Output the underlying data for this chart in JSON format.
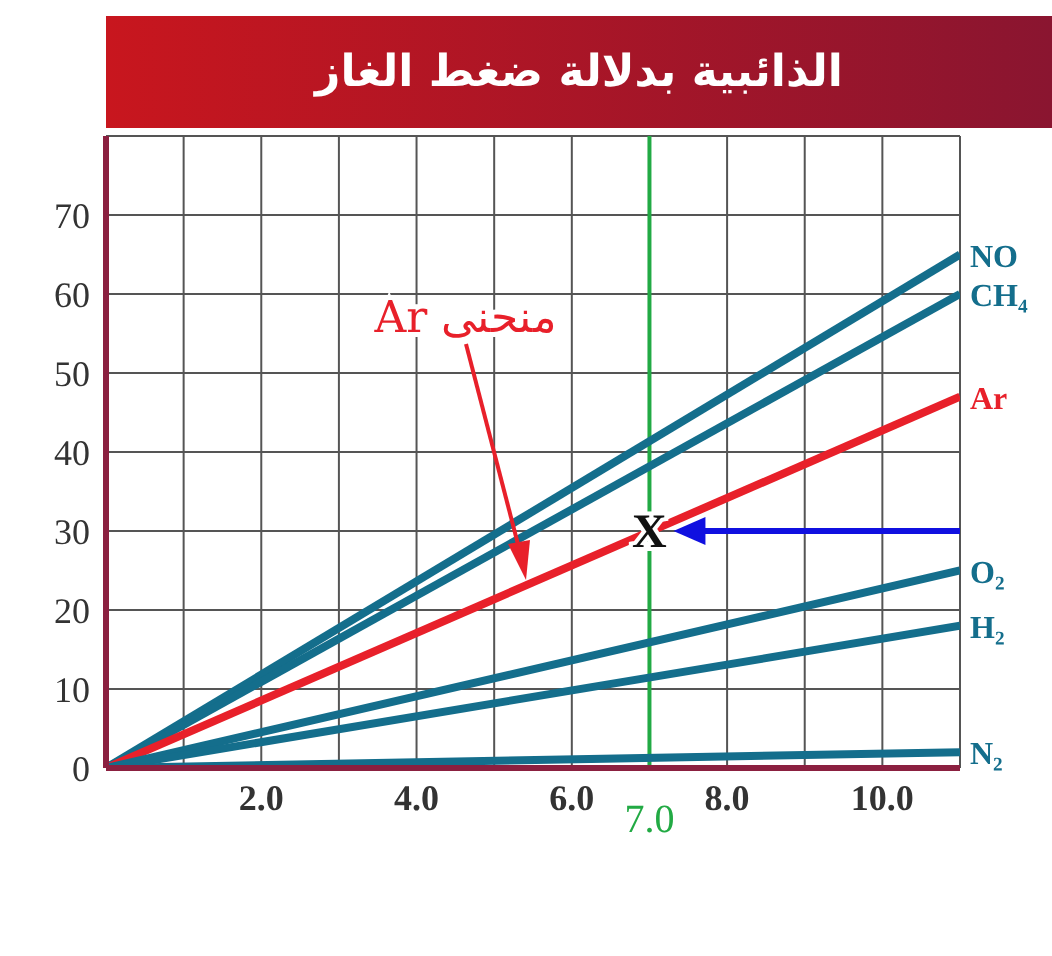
{
  "chart_data": {
    "type": "line",
    "title": "الذائبية بدلالة ضغط الغاز",
    "x": [
      0,
      11
    ],
    "series": [
      {
        "name": "NO",
        "color": "#146e8c",
        "values": [
          0,
          65
        ]
      },
      {
        "name": "CH₄",
        "color": "#146e8c",
        "values": [
          0,
          60
        ]
      },
      {
        "name": "Ar",
        "color": "#e8202a",
        "values": [
          0,
          47
        ]
      },
      {
        "name": "O₂",
        "color": "#146e8c",
        "values": [
          0,
          25
        ]
      },
      {
        "name": "H₂",
        "color": "#146e8c",
        "values": [
          0,
          18
        ]
      },
      {
        "name": "N₂",
        "color": "#146e8c",
        "values": [
          0,
          2
        ]
      }
    ],
    "xlim": [
      0,
      11
    ],
    "xticks": [
      {
        "value": 1,
        "label": null
      },
      {
        "value": 2,
        "label": "2.0"
      },
      {
        "value": 3,
        "label": null
      },
      {
        "value": 4,
        "label": "4.0"
      },
      {
        "value": 5,
        "label": null
      },
      {
        "value": 6,
        "label": "6.0"
      },
      {
        "value": 7,
        "label": null
      },
      {
        "value": 8,
        "label": "8.0"
      },
      {
        "value": 9,
        "label": null
      },
      {
        "value": 10,
        "label": "10.0"
      },
      {
        "value": 11,
        "label": null
      }
    ],
    "ylim": [
      0,
      80
    ],
    "yticks": [
      0,
      10,
      20,
      30,
      40,
      50,
      60,
      70
    ],
    "grid": true,
    "line_style": "solid",
    "ref_lines": [
      {
        "axis": "x",
        "value": 7,
        "label": "7.0",
        "color": "#22aa44"
      }
    ],
    "annotations": [
      "منحنى Ar",
      {
        "text": "X",
        "x": 7,
        "y": 30
      }
    ]
  }
}
